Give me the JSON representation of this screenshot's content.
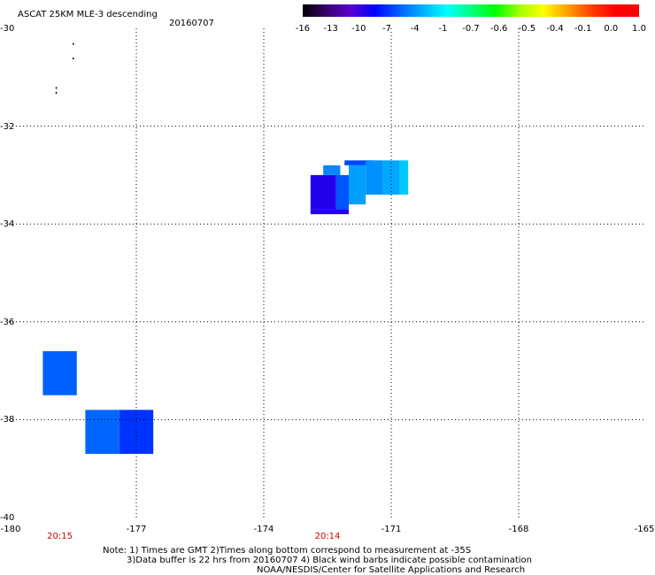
{
  "header": {
    "title": "ASCAT 25KM MLE-3 descending",
    "date": "20160707"
  },
  "colorbar": {
    "labels": [
      "-16",
      "-13",
      "-10",
      "-7",
      "-4",
      "-1",
      "-0.7",
      "-0.6",
      "-0.5",
      "-0.4",
      "-0.1",
      "0.0",
      "1.0"
    ],
    "colors": [
      "#000000",
      "#3a0070",
      "#5a00d0",
      "#0000ff",
      "#0060ff",
      "#00b0ff",
      "#00ffff",
      "#00ff80",
      "#00ff00",
      "#a0ff00",
      "#ffff00",
      "#ffa000",
      "#ff4000",
      "#ff0000"
    ]
  },
  "map": {
    "lon_range": [
      -180,
      -165
    ],
    "lat_range": [
      -40,
      -30
    ],
    "lon_ticks": [
      "-180",
      "-177",
      "-174",
      "-171",
      "-168",
      "-165"
    ],
    "lat_ticks": [
      "-30",
      "-32",
      "-34",
      "-36",
      "-38",
      "-40"
    ],
    "time_labels": [
      {
        "text": "20:15",
        "lon": -178.8
      },
      {
        "text": "20:14",
        "lon": -172.5
      }
    ],
    "cells": [
      {
        "lon": [
          -179.2,
          -178.4
        ],
        "lat": [
          -36.6,
          -37.5
        ],
        "color": "#0060ff"
      },
      {
        "lon": [
          -178.2,
          -177.4
        ],
        "lat": [
          -37.8,
          -38.7
        ],
        "color": "#0066ff"
      },
      {
        "lon": [
          -177.4,
          -176.6
        ],
        "lat": [
          -37.8,
          -38.7
        ],
        "color": "#0033ff"
      },
      {
        "lon": [
          -172.9,
          -172.3
        ],
        "lat": [
          -33.0,
          -33.7
        ],
        "color": "#2200ee"
      },
      {
        "lon": [
          -172.3,
          -172.0
        ],
        "lat": [
          -33.0,
          -33.7
        ],
        "color": "#0055ff"
      },
      {
        "lon": [
          -172.9,
          -172.0
        ],
        "lat": [
          -33.7,
          -33.8
        ],
        "color": "#2200ee"
      },
      {
        "lon": [
          -172.6,
          -172.2
        ],
        "lat": [
          -32.8,
          -33.0
        ],
        "color": "#0088ff"
      },
      {
        "lon": [
          -172.0,
          -171.6
        ],
        "lat": [
          -32.8,
          -33.6
        ],
        "color": "#00a0ff"
      },
      {
        "lon": [
          -172.1,
          -171.4
        ],
        "lat": [
          -32.7,
          -32.8
        ],
        "color": "#0044ff"
      },
      {
        "lon": [
          -171.6,
          -171.2
        ],
        "lat": [
          -32.7,
          -33.4
        ],
        "color": "#0090ff"
      },
      {
        "lon": [
          -171.2,
          -170.8
        ],
        "lat": [
          -32.7,
          -33.4
        ],
        "color": "#00a8ff"
      },
      {
        "lon": [
          -170.8,
          -170.6
        ],
        "lat": [
          -32.7,
          -33.4
        ],
        "color": "#00c8ff"
      }
    ],
    "specks": [
      {
        "lon": -178.5,
        "lat": -30.3
      },
      {
        "lon": -178.5,
        "lat": -30.6
      },
      {
        "lon": -178.9,
        "lat": -31.2
      },
      {
        "lon": -178.9,
        "lat": -31.3
      }
    ]
  },
  "notes": {
    "line1": "Note: 1) Times are GMT 2)Times along bottom correspond to measurement at -35S",
    "line2": "3)Data buffer is 22 hrs from 20160707 4) Black wind barbs indicate possible contamination",
    "line3": "NOAA/NESDIS/Center for Satellite Applications and Research"
  }
}
